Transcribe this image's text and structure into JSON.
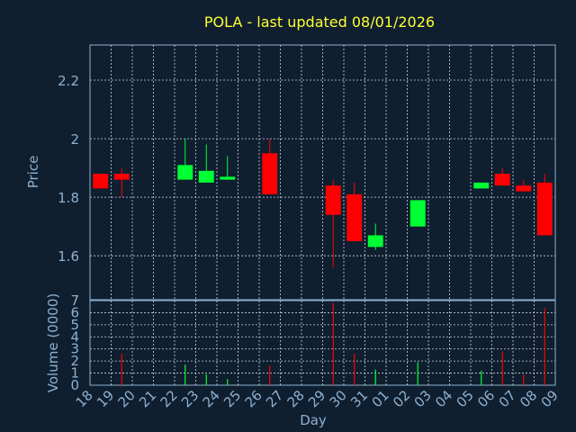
{
  "chart_data": [
    {
      "type": "candlestick",
      "title": "POLA - last updated 08/01/2026",
      "ylabel": "Price",
      "ylim": [
        1.45,
        2.32
      ],
      "yticks": [
        "1.6",
        "1.8",
        "2",
        "2.2"
      ],
      "ytick_values": [
        1.6,
        1.8,
        2.0,
        2.2
      ],
      "grid": true,
      "colors": {
        "up": "#00ff33",
        "down": "#ff0000",
        "grid": "#c8d4e0",
        "axis": "#8fb0cf",
        "title": "#ffff33",
        "background": "#0f1f30"
      },
      "x": [
        "18",
        "19",
        "20",
        "21",
        "22",
        "23",
        "24",
        "25",
        "26",
        "27",
        "28",
        "29",
        "30",
        "31",
        "01",
        "02",
        "03",
        "04",
        "05",
        "06",
        "07",
        "08"
      ],
      "candles": [
        {
          "day": "18",
          "open": 1.88,
          "high": 1.88,
          "low": 1.83,
          "close": 1.83
        },
        {
          "day": "19",
          "open": 1.88,
          "high": 1.9,
          "low": 1.8,
          "close": 1.86
        },
        {
          "day": "22",
          "open": 1.86,
          "high": 2.0,
          "low": 1.86,
          "close": 1.91
        },
        {
          "day": "23",
          "open": 1.85,
          "high": 1.98,
          "low": 1.85,
          "close": 1.89
        },
        {
          "day": "24",
          "open": 1.86,
          "high": 1.94,
          "low": 1.86,
          "close": 1.87
        },
        {
          "day": "26",
          "open": 1.95,
          "high": 2.0,
          "low": 1.81,
          "close": 1.81
        },
        {
          "day": "29",
          "open": 1.84,
          "high": 1.86,
          "low": 1.56,
          "close": 1.74
        },
        {
          "day": "30",
          "open": 1.81,
          "high": 1.85,
          "low": 1.65,
          "close": 1.65
        },
        {
          "day": "31",
          "open": 1.63,
          "high": 1.71,
          "low": 1.62,
          "close": 1.67
        },
        {
          "day": "02",
          "open": 1.7,
          "high": 1.79,
          "low": 1.7,
          "close": 1.79
        },
        {
          "day": "05",
          "open": 1.83,
          "high": 1.85,
          "low": 1.83,
          "close": 1.85
        },
        {
          "day": "06",
          "open": 1.88,
          "high": 1.9,
          "low": 1.84,
          "close": 1.84
        },
        {
          "day": "07",
          "open": 1.84,
          "high": 1.86,
          "low": 1.82,
          "close": 1.82
        },
        {
          "day": "08",
          "open": 1.85,
          "high": 1.88,
          "low": 1.67,
          "close": 1.67
        }
      ]
    },
    {
      "type": "bar",
      "ylabel": "Volume (0000)",
      "xlabel": "Day",
      "ylim": [
        0,
        7
      ],
      "yticks": [
        "0",
        "1",
        "2",
        "3",
        "4",
        "5",
        "6",
        "7"
      ],
      "grid": true,
      "x": [
        "18",
        "19",
        "20",
        "21",
        "22",
        "23",
        "24",
        "25",
        "26",
        "27",
        "28",
        "29",
        "30",
        "31",
        "01",
        "02",
        "03",
        "04",
        "05",
        "06",
        "07",
        "08",
        "09"
      ],
      "bars": [
        {
          "day": "19",
          "value": 2.6,
          "dir": "down"
        },
        {
          "day": "22",
          "value": 1.7,
          "dir": "up"
        },
        {
          "day": "23",
          "value": 0.9,
          "dir": "up"
        },
        {
          "day": "24",
          "value": 0.5,
          "dir": "up"
        },
        {
          "day": "26",
          "value": 1.6,
          "dir": "down"
        },
        {
          "day": "29",
          "value": 6.8,
          "dir": "down"
        },
        {
          "day": "30",
          "value": 2.6,
          "dir": "down"
        },
        {
          "day": "31",
          "value": 1.3,
          "dir": "up"
        },
        {
          "day": "02",
          "value": 1.9,
          "dir": "up"
        },
        {
          "day": "05",
          "value": 1.2,
          "dir": "up"
        },
        {
          "day": "06",
          "value": 2.8,
          "dir": "down"
        },
        {
          "day": "07",
          "value": 0.9,
          "dir": "down"
        },
        {
          "day": "08",
          "value": 6.4,
          "dir": "down"
        }
      ]
    }
  ]
}
